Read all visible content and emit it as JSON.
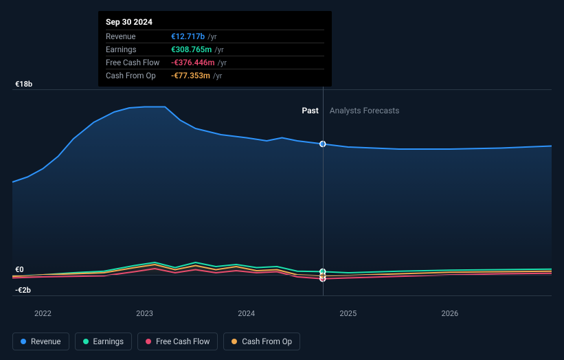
{
  "chart": {
    "type": "line",
    "background_color": "#0d1826",
    "grid_color": "#2a3847",
    "text_color": "#ffffff",
    "muted_text_color": "#9ea7b3",
    "y_axis": {
      "ticks": [
        {
          "value": 18,
          "label": "€18b"
        },
        {
          "value": 0,
          "label": "€0"
        },
        {
          "value": -2,
          "label": "-€2b"
        }
      ],
      "min": -2,
      "max": 18
    },
    "x_axis": {
      "ticks": [
        2022,
        2023,
        2024,
        2025,
        2026
      ],
      "min": 2021.7,
      "max": 2027.0
    },
    "divider_x": 2024.75,
    "region_labels": {
      "past": "Past",
      "future": "Analysts Forecasts"
    },
    "hover_x": 2024.75,
    "tooltip": {
      "date": "Sep 30 2024",
      "rows": [
        {
          "label": "Revenue",
          "value": "€12.717b",
          "unit": "/yr",
          "color": "#2e93fa"
        },
        {
          "label": "Earnings",
          "value": "€308.765m",
          "unit": "/yr",
          "color": "#1ee0ac"
        },
        {
          "label": "Free Cash Flow",
          "value": "-€376.446m",
          "unit": "/yr",
          "color": "#e8476f"
        },
        {
          "label": "Cash From Op",
          "value": "-€77.353m",
          "unit": "/yr",
          "color": "#f0a94f"
        }
      ]
    },
    "series": [
      {
        "name": "Revenue",
        "color": "#2e93fa",
        "fill": true,
        "fill_opacity_top": 0.25,
        "data": [
          [
            2021.7,
            9.0
          ],
          [
            2021.85,
            9.5
          ],
          [
            2022.0,
            10.3
          ],
          [
            2022.15,
            11.5
          ],
          [
            2022.3,
            13.2
          ],
          [
            2022.5,
            14.8
          ],
          [
            2022.7,
            15.8
          ],
          [
            2022.85,
            16.2
          ],
          [
            2023.0,
            16.3
          ],
          [
            2023.2,
            16.3
          ],
          [
            2023.35,
            15.0
          ],
          [
            2023.5,
            14.2
          ],
          [
            2023.75,
            13.6
          ],
          [
            2024.0,
            13.3
          ],
          [
            2024.2,
            13.0
          ],
          [
            2024.35,
            13.3
          ],
          [
            2024.5,
            13.0
          ],
          [
            2024.75,
            12.7
          ],
          [
            2025.0,
            12.4
          ],
          [
            2025.5,
            12.2
          ],
          [
            2026.0,
            12.2
          ],
          [
            2026.5,
            12.3
          ],
          [
            2027.0,
            12.5
          ]
        ],
        "marker_value": 12.7
      },
      {
        "name": "Earnings",
        "color": "#1ee0ac",
        "fill": false,
        "data": [
          [
            2021.7,
            -0.1
          ],
          [
            2022.0,
            0.0
          ],
          [
            2022.3,
            0.2
          ],
          [
            2022.6,
            0.35
          ],
          [
            2022.9,
            0.9
          ],
          [
            2023.1,
            1.2
          ],
          [
            2023.3,
            0.7
          ],
          [
            2023.5,
            1.2
          ],
          [
            2023.7,
            0.8
          ],
          [
            2023.9,
            1.0
          ],
          [
            2024.1,
            0.7
          ],
          [
            2024.3,
            0.8
          ],
          [
            2024.5,
            0.35
          ],
          [
            2024.75,
            0.31
          ],
          [
            2025.0,
            0.2
          ],
          [
            2025.5,
            0.35
          ],
          [
            2026.0,
            0.45
          ],
          [
            2026.5,
            0.5
          ],
          [
            2027.0,
            0.55
          ]
        ],
        "marker_value": 0.31
      },
      {
        "name": "Free Cash Flow",
        "color": "#e8476f",
        "fill": false,
        "data": [
          [
            2021.7,
            -0.3
          ],
          [
            2022.0,
            -0.2
          ],
          [
            2022.3,
            -0.15
          ],
          [
            2022.6,
            -0.1
          ],
          [
            2022.9,
            0.3
          ],
          [
            2023.1,
            0.6
          ],
          [
            2023.3,
            0.2
          ],
          [
            2023.5,
            0.5
          ],
          [
            2023.7,
            0.2
          ],
          [
            2023.9,
            0.4
          ],
          [
            2024.1,
            0.2
          ],
          [
            2024.3,
            0.3
          ],
          [
            2024.5,
            -0.2
          ],
          [
            2024.75,
            -0.38
          ],
          [
            2025.0,
            -0.3
          ],
          [
            2025.5,
            -0.15
          ],
          [
            2026.0,
            0.0
          ],
          [
            2026.5,
            0.1
          ],
          [
            2027.0,
            0.15
          ]
        ],
        "marker_value": -0.38
      },
      {
        "name": "Cash From Op",
        "color": "#f0a94f",
        "fill": true,
        "fill_opacity_top": 0.15,
        "data": [
          [
            2021.7,
            -0.15
          ],
          [
            2022.0,
            0.0
          ],
          [
            2022.3,
            0.1
          ],
          [
            2022.6,
            0.2
          ],
          [
            2022.9,
            0.7
          ],
          [
            2023.1,
            1.0
          ],
          [
            2023.3,
            0.5
          ],
          [
            2023.5,
            0.9
          ],
          [
            2023.7,
            0.5
          ],
          [
            2023.9,
            0.8
          ],
          [
            2024.1,
            0.4
          ],
          [
            2024.3,
            0.5
          ],
          [
            2024.5,
            0.0
          ],
          [
            2024.75,
            -0.08
          ],
          [
            2025.0,
            -0.05
          ],
          [
            2025.5,
            0.1
          ],
          [
            2026.0,
            0.25
          ],
          [
            2026.5,
            0.3
          ],
          [
            2027.0,
            0.35
          ]
        ],
        "marker_value": -0.08
      }
    ],
    "legend": [
      {
        "label": "Revenue",
        "color": "#2e93fa"
      },
      {
        "label": "Earnings",
        "color": "#1ee0ac"
      },
      {
        "label": "Free Cash Flow",
        "color": "#e8476f"
      },
      {
        "label": "Cash From Op",
        "color": "#f0a94f"
      }
    ]
  }
}
